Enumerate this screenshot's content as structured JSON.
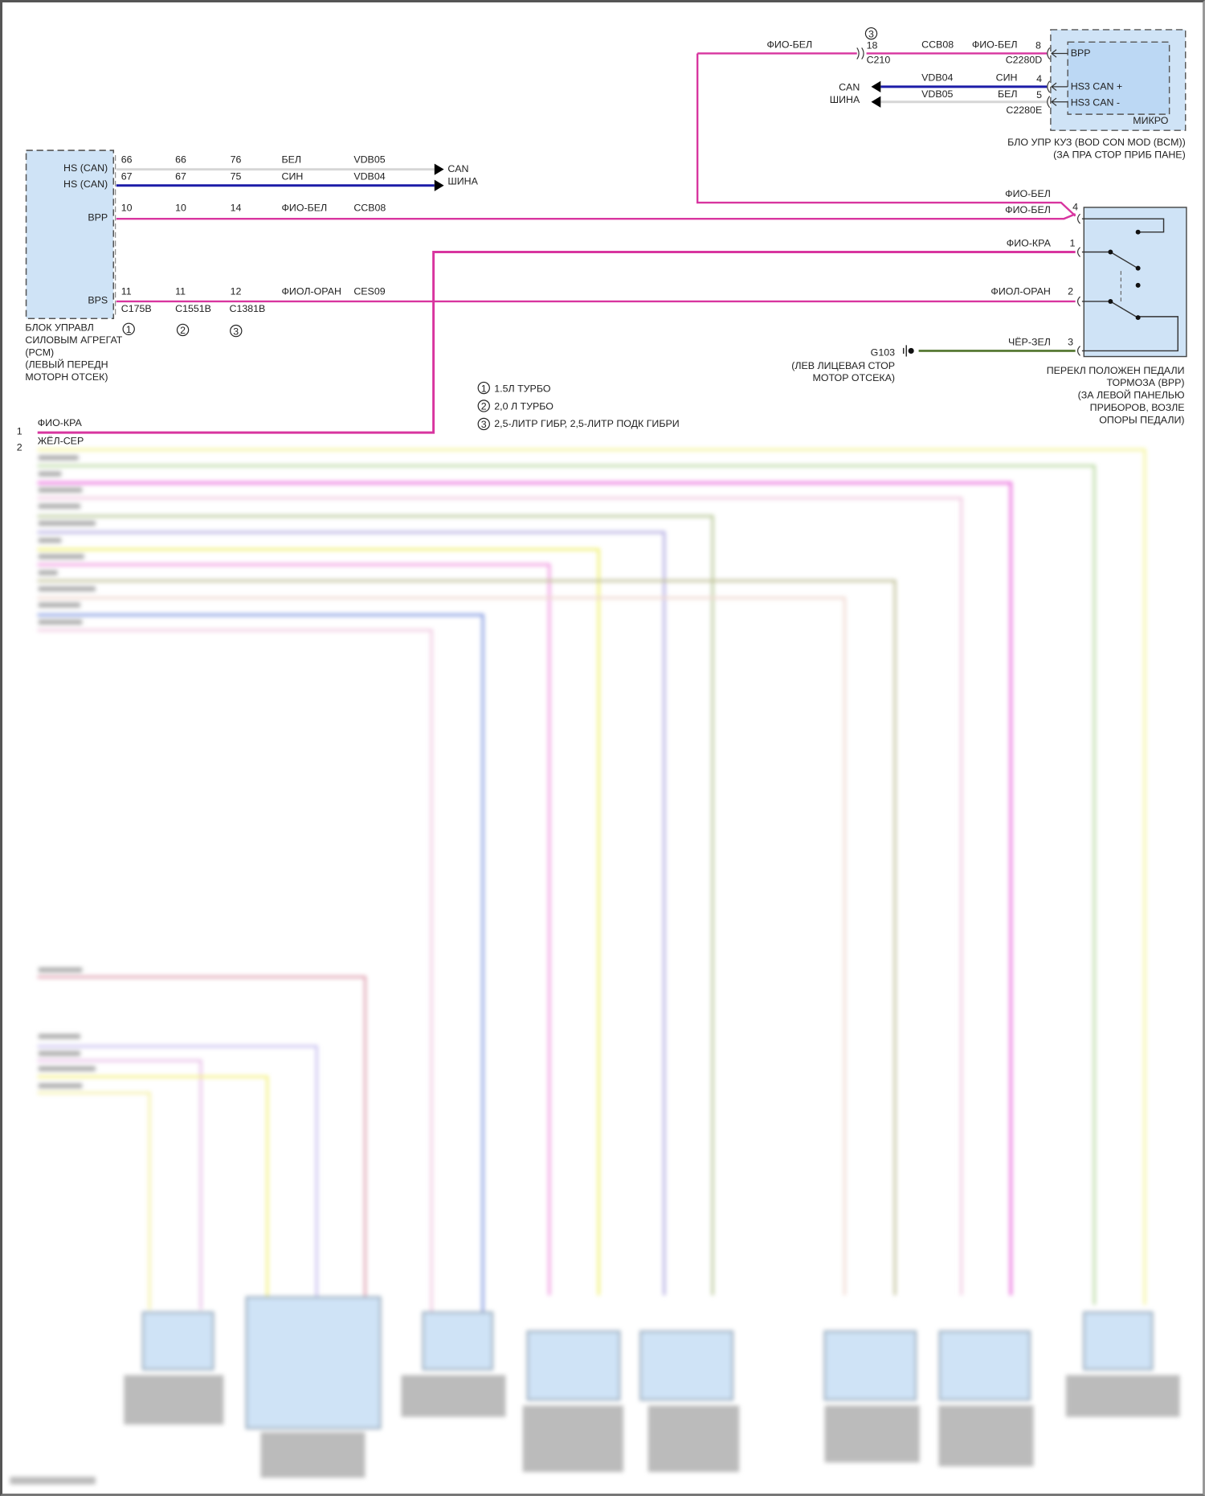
{
  "colors": {
    "violet_white": "#d8359f",
    "blue": "#1c1ca8",
    "white": "#d6d6d6",
    "black_green": "#5b7d3a",
    "module_fill": "#cfe3f6"
  },
  "pcm": {
    "pins": {
      "hs_can_1": "HS (CAN)",
      "hs_can_2": "HS (CAN)",
      "bpp": "BPP",
      "bps": "BPS"
    },
    "caption": [
      "БЛОК УПРАВЛ",
      "СИЛОВЫМ АГРЕГАТ",
      "(PCM)",
      "(ЛЕВЫЙ ПЕРЕДН",
      "МОТОРН ОТСЕК)"
    ],
    "rows": [
      {
        "c1": "66",
        "c2": "66",
        "c3": "76",
        "color": "БЕЛ",
        "circuit": "VDB05"
      },
      {
        "c1": "67",
        "c2": "67",
        "c3": "75",
        "color": "СИН",
        "circuit": "VDB04"
      },
      {
        "c1": "10",
        "c2": "10",
        "c3": "14",
        "color": "ФИО-БЕЛ",
        "circuit": "CCB08"
      },
      {
        "c1": "11",
        "c2": "11",
        "c3": "12",
        "color": "ФИОЛ-ОРАН",
        "circuit": "CES09"
      }
    ],
    "connectors": [
      "C175B",
      "C1551B",
      "C1381B"
    ],
    "variant_marks": [
      "1",
      "2",
      "3"
    ],
    "can_bus": [
      "CAN",
      "ШИНА"
    ]
  },
  "bcm": {
    "wire_color_left": "ФИО-БЕЛ",
    "c210_mark": "3",
    "c210_pin": "18",
    "c210": "C210",
    "rows": [
      {
        "circuit": "CCB08",
        "color": "ФИО-БЕЛ",
        "pin": "8"
      },
      {
        "circuit": "VDB04",
        "color": "СИН",
        "pin": "4"
      },
      {
        "circuit": "VDB05",
        "color": "БЕЛ",
        "pin": "5"
      }
    ],
    "conn_d": "C2280D",
    "conn_e": "C2280E",
    "pins": {
      "bpp": "BPP",
      "can_plus": "HS3 CAN +",
      "can_minus": "HS3 CAN -"
    },
    "micro": "МИКРО",
    "can_bus": [
      "CAN",
      "ШИНА"
    ],
    "caption": [
      "БЛО УПР КУЗ (BOD CON MOD (BCM))",
      "(ЗА ПРА СТОР ПРИБ ПАНЕ)"
    ]
  },
  "bpp_switch": {
    "wires": [
      {
        "color": "ФИО-БЕЛ",
        "pin": ""
      },
      {
        "color": "ФИО-БЕЛ",
        "pin": "4"
      },
      {
        "color": "ФИО-КРА",
        "pin": "1"
      },
      {
        "color": "ФИОЛ-ОРАН",
        "pin": "2"
      },
      {
        "color": "ЧЁР-ЗЕЛ",
        "pin": "3"
      }
    ],
    "caption": [
      "ПЕРЕКЛ ПОЛОЖЕН ПЕДАЛИ",
      "ТОРМОЗА (BPP)",
      "(ЗА ЛЕВОЙ ПАНЕЛЬЮ",
      "ПРИБОРОВ, ВОЗЛЕ",
      "ОПОРЫ ПЕДАЛИ)"
    ]
  },
  "ground": {
    "id": "G103",
    "caption": [
      "(ЛЕВ ЛИЦЕВАЯ СТОР",
      "МОТОР ОТСЕКА)"
    ]
  },
  "legend": [
    {
      "mark": "1",
      "text": "1.5Л ТУРБО"
    },
    {
      "mark": "2",
      "text": "2,0 Л ТУРБО"
    },
    {
      "mark": "3",
      "text": "2,5-ЛИТР ГИБР, 2,5-ЛИТР ПОДК ГИБРИ"
    }
  ],
  "harness": [
    {
      "num": "1",
      "color": "ФИО-КРА"
    },
    {
      "num": "2",
      "color": "ЖЁЛ-СЕР"
    }
  ]
}
